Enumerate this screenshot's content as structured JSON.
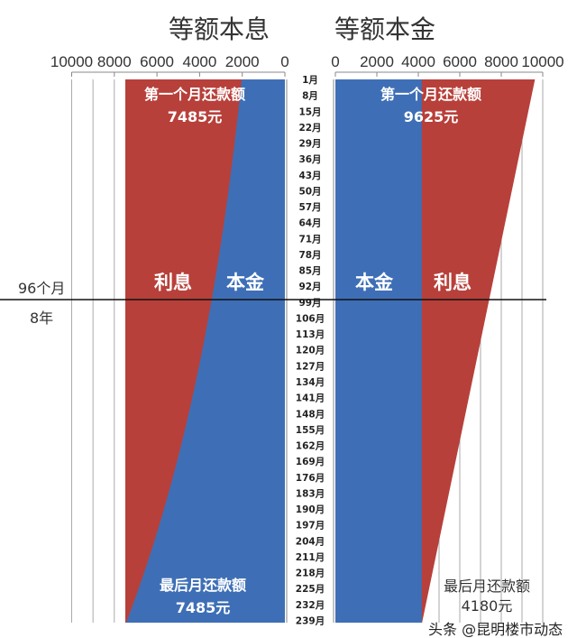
{
  "colors": {
    "principal": "#3e6fb6",
    "interest": "#b8403a"
  },
  "chart_data": [
    {
      "type": "area",
      "title": "等额本息",
      "x_axis": {
        "ticks": [
          "10000",
          "8000",
          "6000",
          "4000",
          "2000",
          "0"
        ],
        "range": [
          10000,
          0
        ]
      },
      "months": [
        "1月",
        "8月",
        "15月",
        "22月",
        "29月",
        "36月",
        "43月",
        "50月",
        "57月",
        "64月",
        "71月",
        "78月",
        "85月",
        "92月",
        "99月",
        "106月",
        "113月",
        "120月",
        "127月",
        "134月",
        "141月",
        "148月",
        "155月",
        "162月",
        "169月",
        "176月",
        "183月",
        "190月",
        "197月",
        "204月",
        "211月",
        "218月",
        "225月",
        "232月",
        "239月"
      ],
      "series": [
        {
          "name": "本金"
        },
        {
          "name": "利息"
        }
      ],
      "monthly_payment": 7485,
      "first_month": {
        "text": "第一个月还款额",
        "amount": "7485元"
      },
      "last_month": {
        "text": "最后月还款额",
        "amount": "7485元"
      }
    },
    {
      "type": "area",
      "title": "等额本金",
      "x_axis": {
        "ticks": [
          "0",
          "2000",
          "4000",
          "6000",
          "8000",
          "10000"
        ],
        "range": [
          0,
          10000
        ]
      },
      "series": [
        {
          "name": "本金"
        },
        {
          "name": "利息"
        }
      ],
      "first_payment": 9625,
      "last_payment": 4180,
      "first_month": {
        "text": "第一个月还款额",
        "amount": "9625元"
      },
      "last_month": {
        "text": "最后月还款额",
        "amount": "4180元"
      }
    }
  ],
  "marker": {
    "months": "96个月",
    "years": "8年"
  },
  "watermark": "头条 @昆明楼市动态"
}
